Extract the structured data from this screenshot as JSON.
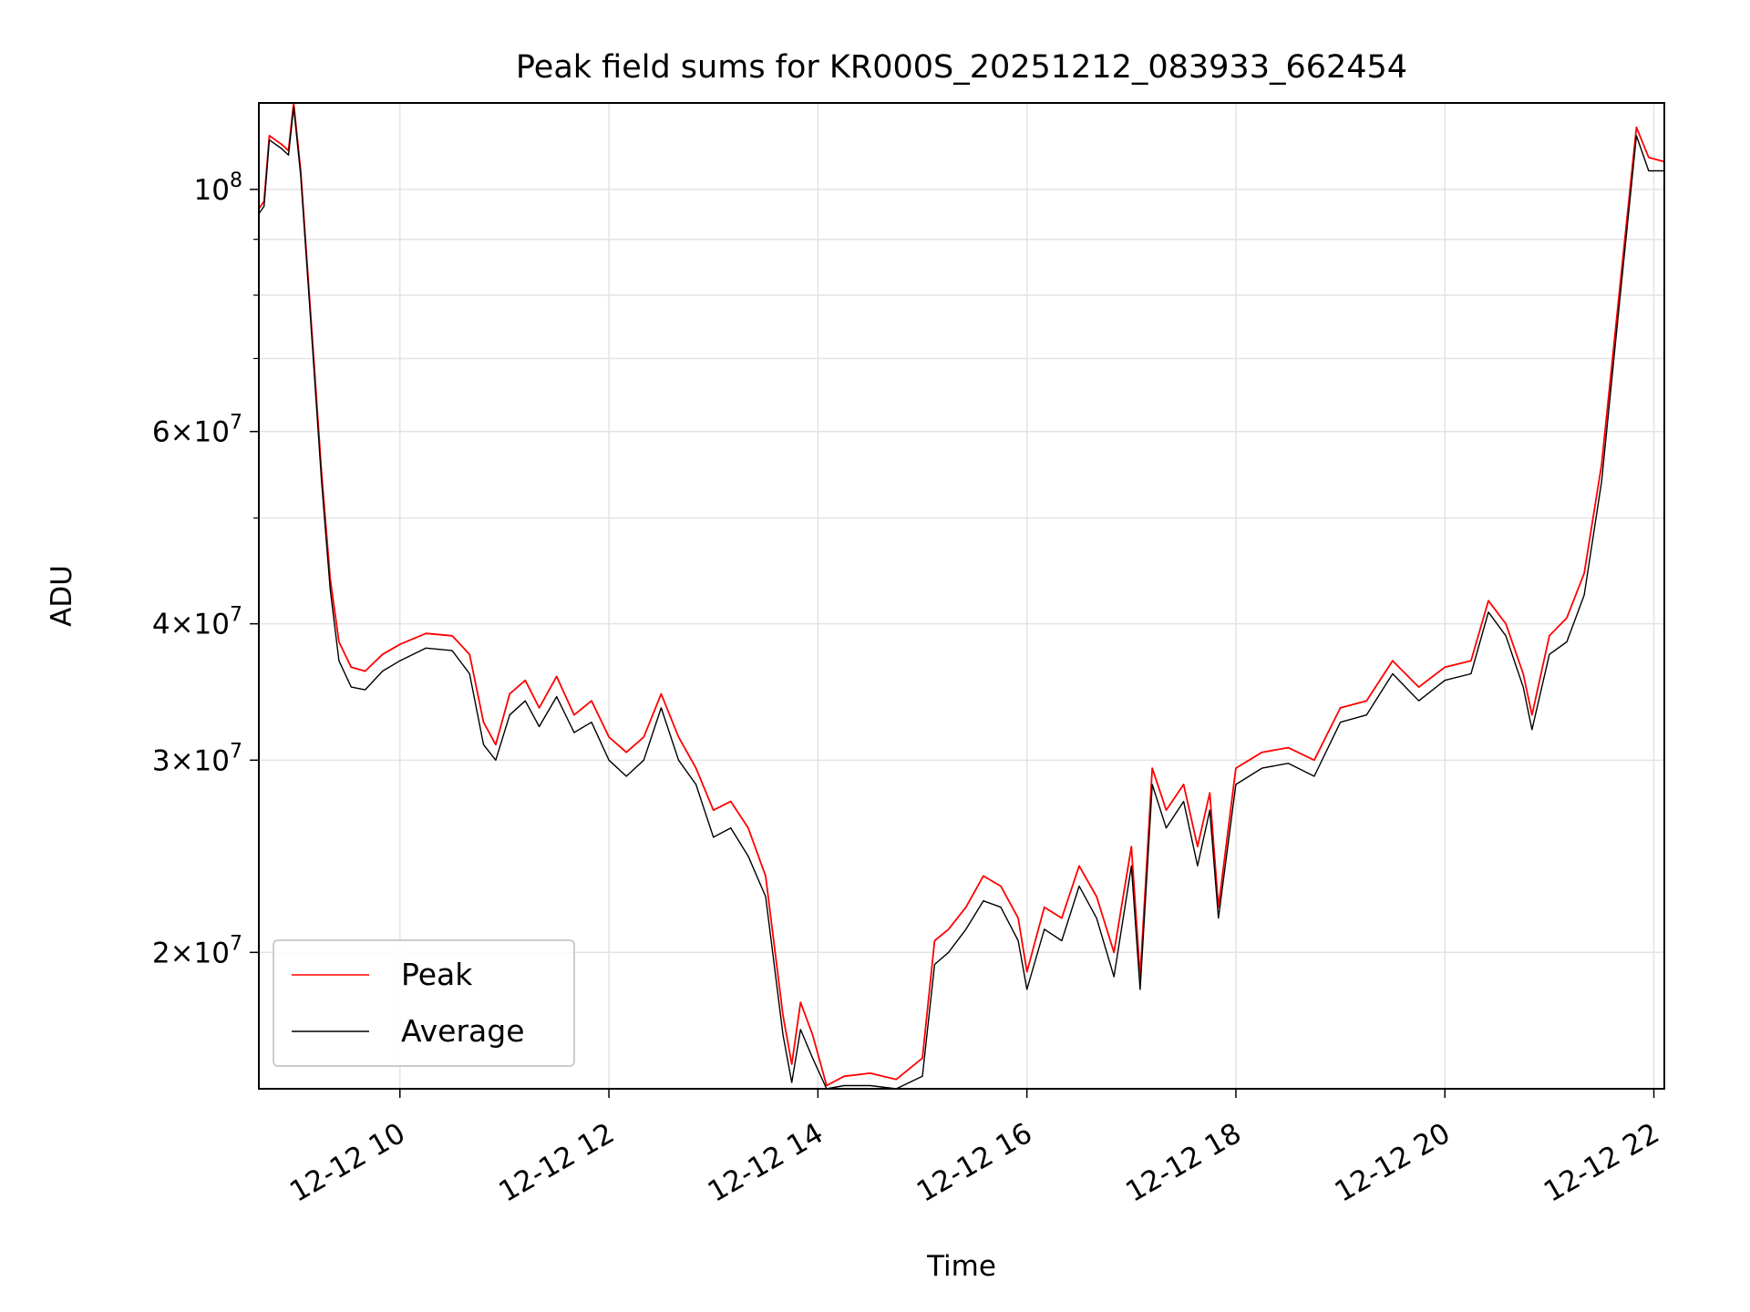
{
  "chart_data": {
    "type": "line",
    "title": "Peak field sums for KR000S_20251212_083933_662454",
    "xlabel": "Time",
    "ylabel": "ADU",
    "yscale": "log",
    "xlim": [
      "2025-12-12 08:39",
      "2025-12-12 22:06"
    ],
    "ylim": [
      15000000,
      120000000
    ],
    "grid": true,
    "legend_position": "lower-left",
    "x_ticks": [
      {
        "x": "2025-12-12 10:00",
        "label": "12-12 10"
      },
      {
        "x": "2025-12-12 12:00",
        "label": "12-12 12"
      },
      {
        "x": "2025-12-12 14:00",
        "label": "12-12 14"
      },
      {
        "x": "2025-12-12 16:00",
        "label": "12-12 16"
      },
      {
        "x": "2025-12-12 18:00",
        "label": "12-12 18"
      },
      {
        "x": "2025-12-12 20:00",
        "label": "12-12 20"
      },
      {
        "x": "2025-12-12 22:00",
        "label": "12-12 22"
      }
    ],
    "y_ticks": [
      {
        "value": 20000000,
        "label": "2 × 10^7",
        "mantissa": "2",
        "exponent": "7"
      },
      {
        "value": 30000000,
        "label": "3 × 10^7",
        "mantissa": "3",
        "exponent": "7"
      },
      {
        "value": 40000000,
        "label": "4 × 10^7",
        "mantissa": "4",
        "exponent": "7"
      },
      {
        "value": 60000000,
        "label": "6 × 10^7",
        "mantissa": "6",
        "exponent": "7"
      },
      {
        "value": 100000000,
        "label": "10^8",
        "mantissa": "",
        "exponent": "8"
      }
    ],
    "y_minor_ticks": [
      50000000,
      70000000,
      80000000,
      90000000
    ],
    "series": [
      {
        "name": "Peak",
        "color": "#ff0000",
        "points": [
          [
            "2025-12-12 08:39",
            96000000
          ],
          [
            "2025-12-12 08:42",
            97500000
          ],
          [
            "2025-12-12 08:45",
            112000000
          ],
          [
            "2025-12-12 08:52",
            110000000
          ],
          [
            "2025-12-12 08:56",
            108500000
          ],
          [
            "2025-12-12 08:59",
            120000000
          ],
          [
            "2025-12-12 09:03",
            104000000
          ],
          [
            "2025-12-12 09:10",
            72000000
          ],
          [
            "2025-12-12 09:15",
            55000000
          ],
          [
            "2025-12-12 09:20",
            44000000
          ],
          [
            "2025-12-12 09:25",
            38500000
          ],
          [
            "2025-12-12 09:32",
            36500000
          ],
          [
            "2025-12-12 09:40",
            36200000
          ],
          [
            "2025-12-12 09:50",
            37500000
          ],
          [
            "2025-12-12 10:00",
            38300000
          ],
          [
            "2025-12-12 10:15",
            39200000
          ],
          [
            "2025-12-12 10:30",
            39000000
          ],
          [
            "2025-12-12 10:40",
            37500000
          ],
          [
            "2025-12-12 10:48",
            32500000
          ],
          [
            "2025-12-12 10:55",
            31000000
          ],
          [
            "2025-12-12 11:03",
            34500000
          ],
          [
            "2025-12-12 11:12",
            35500000
          ],
          [
            "2025-12-12 11:20",
            33500000
          ],
          [
            "2025-12-12 11:30",
            35800000
          ],
          [
            "2025-12-12 11:40",
            33000000
          ],
          [
            "2025-12-12 11:50",
            34000000
          ],
          [
            "2025-12-12 12:00",
            31500000
          ],
          [
            "2025-12-12 12:10",
            30500000
          ],
          [
            "2025-12-12 12:20",
            31500000
          ],
          [
            "2025-12-12 12:30",
            34500000
          ],
          [
            "2025-12-12 12:40",
            31500000
          ],
          [
            "2025-12-12 12:50",
            29500000
          ],
          [
            "2025-12-12 13:00",
            27000000
          ],
          [
            "2025-12-12 13:10",
            27500000
          ],
          [
            "2025-12-12 13:20",
            26000000
          ],
          [
            "2025-12-12 13:30",
            23500000
          ],
          [
            "2025-12-12 13:40",
            17500000
          ],
          [
            "2025-12-12 13:45",
            15800000
          ],
          [
            "2025-12-12 13:50",
            18000000
          ],
          [
            "2025-12-12 13:57",
            16800000
          ],
          [
            "2025-12-12 14:05",
            15100000
          ],
          [
            "2025-12-12 14:15",
            15400000
          ],
          [
            "2025-12-12 14:30",
            15500000
          ],
          [
            "2025-12-12 14:45",
            15300000
          ],
          [
            "2025-12-12 15:00",
            16000000
          ],
          [
            "2025-12-12 15:07",
            20500000
          ],
          [
            "2025-12-12 15:15",
            21000000
          ],
          [
            "2025-12-12 15:25",
            22000000
          ],
          [
            "2025-12-12 15:35",
            23500000
          ],
          [
            "2025-12-12 15:45",
            23000000
          ],
          [
            "2025-12-12 15:55",
            21500000
          ],
          [
            "2025-12-12 16:00",
            19200000
          ],
          [
            "2025-12-12 16:10",
            22000000
          ],
          [
            "2025-12-12 16:20",
            21500000
          ],
          [
            "2025-12-12 16:30",
            24000000
          ],
          [
            "2025-12-12 16:40",
            22500000
          ],
          [
            "2025-12-12 16:50",
            20000000
          ],
          [
            "2025-12-12 17:00",
            25000000
          ],
          [
            "2025-12-12 17:05",
            19000000
          ],
          [
            "2025-12-12 17:12",
            29500000
          ],
          [
            "2025-12-12 17:20",
            27000000
          ],
          [
            "2025-12-12 17:30",
            28500000
          ],
          [
            "2025-12-12 17:38",
            25000000
          ],
          [
            "2025-12-12 17:45",
            28000000
          ],
          [
            "2025-12-12 17:50",
            22000000
          ],
          [
            "2025-12-12 18:00",
            29500000
          ],
          [
            "2025-12-12 18:15",
            30500000
          ],
          [
            "2025-12-12 18:30",
            30800000
          ],
          [
            "2025-12-12 18:45",
            30000000
          ],
          [
            "2025-12-12 19:00",
            33500000
          ],
          [
            "2025-12-12 19:15",
            34000000
          ],
          [
            "2025-12-12 19:30",
            37000000
          ],
          [
            "2025-12-12 19:45",
            35000000
          ],
          [
            "2025-12-12 20:00",
            36500000
          ],
          [
            "2025-12-12 20:15",
            37000000
          ],
          [
            "2025-12-12 20:25",
            42000000
          ],
          [
            "2025-12-12 20:35",
            40000000
          ],
          [
            "2025-12-12 20:45",
            36000000
          ],
          [
            "2025-12-12 20:50",
            33000000
          ],
          [
            "2025-12-12 21:00",
            39000000
          ],
          [
            "2025-12-12 21:10",
            40500000
          ],
          [
            "2025-12-12 21:20",
            44500000
          ],
          [
            "2025-12-12 21:30",
            56000000
          ],
          [
            "2025-12-12 21:40",
            80000000
          ],
          [
            "2025-12-12 21:50",
            114000000
          ],
          [
            "2025-12-12 21:57",
            107000000
          ],
          [
            "2025-12-12 22:06",
            106000000
          ]
        ]
      },
      {
        "name": "Average",
        "color": "#000000",
        "points": [
          [
            "2025-12-12 08:39",
            95000000
          ],
          [
            "2025-12-12 08:42",
            96500000
          ],
          [
            "2025-12-12 08:45",
            111000000
          ],
          [
            "2025-12-12 08:52",
            109000000
          ],
          [
            "2025-12-12 08:56",
            107500000
          ],
          [
            "2025-12-12 08:59",
            119000000
          ],
          [
            "2025-12-12 09:03",
            103000000
          ],
          [
            "2025-12-12 09:10",
            71000000
          ],
          [
            "2025-12-12 09:15",
            54000000
          ],
          [
            "2025-12-12 09:20",
            43000000
          ],
          [
            "2025-12-12 09:25",
            37000000
          ],
          [
            "2025-12-12 09:32",
            35000000
          ],
          [
            "2025-12-12 09:40",
            34800000
          ],
          [
            "2025-12-12 09:50",
            36200000
          ],
          [
            "2025-12-12 10:00",
            37000000
          ],
          [
            "2025-12-12 10:15",
            38000000
          ],
          [
            "2025-12-12 10:30",
            37800000
          ],
          [
            "2025-12-12 10:40",
            36000000
          ],
          [
            "2025-12-12 10:48",
            31000000
          ],
          [
            "2025-12-12 10:55",
            30000000
          ],
          [
            "2025-12-12 11:03",
            33000000
          ],
          [
            "2025-12-12 11:12",
            34000000
          ],
          [
            "2025-12-12 11:20",
            32200000
          ],
          [
            "2025-12-12 11:30",
            34300000
          ],
          [
            "2025-12-12 11:40",
            31800000
          ],
          [
            "2025-12-12 11:50",
            32500000
          ],
          [
            "2025-12-12 12:00",
            30000000
          ],
          [
            "2025-12-12 12:10",
            29000000
          ],
          [
            "2025-12-12 12:20",
            30000000
          ],
          [
            "2025-12-12 12:30",
            33500000
          ],
          [
            "2025-12-12 12:40",
            30000000
          ],
          [
            "2025-12-12 12:50",
            28500000
          ],
          [
            "2025-12-12 13:00",
            25500000
          ],
          [
            "2025-12-12 13:10",
            26000000
          ],
          [
            "2025-12-12 13:20",
            24500000
          ],
          [
            "2025-12-12 13:30",
            22500000
          ],
          [
            "2025-12-12 13:40",
            16800000
          ],
          [
            "2025-12-12 13:45",
            15200000
          ],
          [
            "2025-12-12 13:50",
            17000000
          ],
          [
            "2025-12-12 13:57",
            16000000
          ],
          [
            "2025-12-12 14:05",
            15000000
          ],
          [
            "2025-12-12 14:15",
            15100000
          ],
          [
            "2025-12-12 14:30",
            15100000
          ],
          [
            "2025-12-12 14:45",
            15000000
          ],
          [
            "2025-12-12 15:00",
            15400000
          ],
          [
            "2025-12-12 15:07",
            19500000
          ],
          [
            "2025-12-12 15:15",
            20000000
          ],
          [
            "2025-12-12 15:25",
            21000000
          ],
          [
            "2025-12-12 15:35",
            22300000
          ],
          [
            "2025-12-12 15:45",
            22000000
          ],
          [
            "2025-12-12 15:55",
            20500000
          ],
          [
            "2025-12-12 16:00",
            18500000
          ],
          [
            "2025-12-12 16:10",
            21000000
          ],
          [
            "2025-12-12 16:20",
            20500000
          ],
          [
            "2025-12-12 16:30",
            23000000
          ],
          [
            "2025-12-12 16:40",
            21500000
          ],
          [
            "2025-12-12 16:50",
            19000000
          ],
          [
            "2025-12-12 17:00",
            24000000
          ],
          [
            "2025-12-12 17:05",
            18500000
          ],
          [
            "2025-12-12 17:12",
            28500000
          ],
          [
            "2025-12-12 17:20",
            26000000
          ],
          [
            "2025-12-12 17:30",
            27500000
          ],
          [
            "2025-12-12 17:38",
            24000000
          ],
          [
            "2025-12-12 17:45",
            27000000
          ],
          [
            "2025-12-12 17:50",
            21500000
          ],
          [
            "2025-12-12 18:00",
            28500000
          ],
          [
            "2025-12-12 18:15",
            29500000
          ],
          [
            "2025-12-12 18:30",
            29800000
          ],
          [
            "2025-12-12 18:45",
            29000000
          ],
          [
            "2025-12-12 19:00",
            32500000
          ],
          [
            "2025-12-12 19:15",
            33000000
          ],
          [
            "2025-12-12 19:30",
            36000000
          ],
          [
            "2025-12-12 19:45",
            34000000
          ],
          [
            "2025-12-12 20:00",
            35500000
          ],
          [
            "2025-12-12 20:15",
            36000000
          ],
          [
            "2025-12-12 20:25",
            41000000
          ],
          [
            "2025-12-12 20:35",
            39000000
          ],
          [
            "2025-12-12 20:45",
            35000000
          ],
          [
            "2025-12-12 20:50",
            32000000
          ],
          [
            "2025-12-12 21:00",
            37500000
          ],
          [
            "2025-12-12 21:10",
            38500000
          ],
          [
            "2025-12-12 21:20",
            42500000
          ],
          [
            "2025-12-12 21:30",
            54000000
          ],
          [
            "2025-12-12 21:40",
            78000000
          ],
          [
            "2025-12-12 21:50",
            112000000
          ],
          [
            "2025-12-12 21:57",
            104000000
          ],
          [
            "2025-12-12 22:06",
            104000000
          ]
        ]
      }
    ]
  }
}
